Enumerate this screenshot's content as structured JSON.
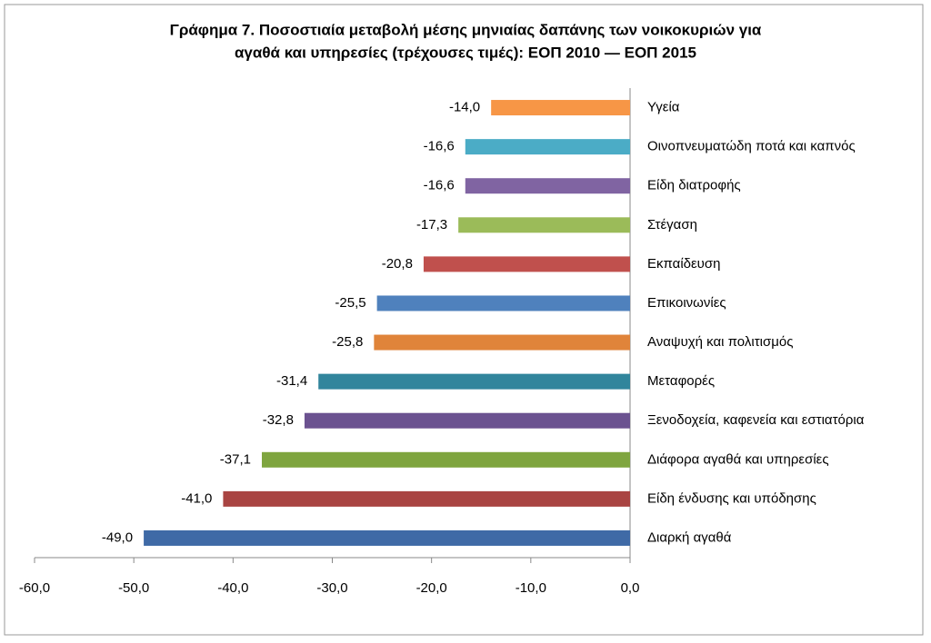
{
  "chart_data": {
    "type": "barh",
    "title": [
      "Γράφημα 7. Ποσοστιαία μεταβολή μέσης μηνιαίας δαπάνης των νοικοκυριών για",
      "αγαθά και υπηρεσίες (τρέχουσες τιμές): ΕΟΠ 2010 — ΕΟΠ 2015"
    ],
    "categories": [
      "Υγεία",
      "Οινοπνευματώδη ποτά και καπνός",
      "Είδη διατροφής",
      "Στέγαση",
      "Εκπαίδευση",
      "Επικοινωνίες",
      "Αναψυχή και πολιτισμός",
      "Μεταφορές",
      "Ξενοδοχεία, καφενεία και εστιατόρια",
      "Διάφορα αγαθά και υπηρεσίες",
      "Είδη ένδυσης και υπόδησης",
      "Διαρκή αγαθά"
    ],
    "values": [
      -14.0,
      -16.6,
      -16.6,
      -17.3,
      -20.8,
      -25.5,
      -25.8,
      -31.4,
      -32.8,
      -37.1,
      -41.0,
      -49.0
    ],
    "value_labels": [
      "-14,0",
      "-16,6",
      "-16,6",
      "-17,3",
      "-20,8",
      "-25,5",
      "-25,8",
      "-31,4",
      "-32,8",
      "-37,1",
      "-41,0",
      "-49,0"
    ],
    "colors": [
      "#f79646",
      "#4bacc6",
      "#8064a2",
      "#9bbb59",
      "#c0504d",
      "#4f81bd",
      "#e0843a",
      "#31859c",
      "#6b5290",
      "#7fa53f",
      "#a94442",
      "#3f6aa6"
    ],
    "xlim": [
      -60,
      0
    ],
    "xticks": [
      {
        "value": -60,
        "label": "-60,0"
      },
      {
        "value": -50,
        "label": "-50,0"
      },
      {
        "value": -40,
        "label": "-40,0"
      },
      {
        "value": -30,
        "label": "-30,0"
      },
      {
        "value": -20,
        "label": "-20,0"
      },
      {
        "value": -10,
        "label": "-10,0"
      },
      {
        "value": 0,
        "label": "0,0"
      }
    ]
  }
}
